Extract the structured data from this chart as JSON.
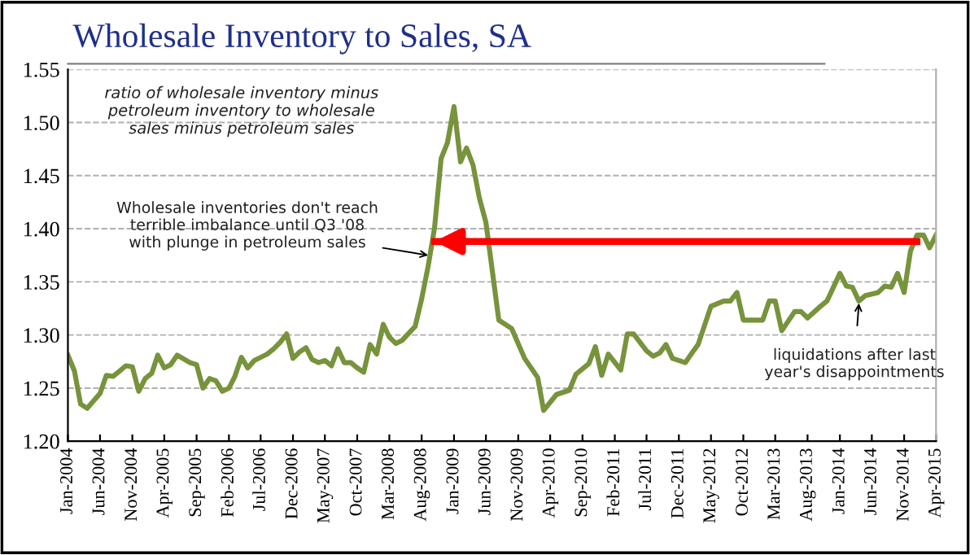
{
  "chart_data": {
    "type": "line",
    "title": "Wholesale Inventory to Sales, SA",
    "series": [
      {
        "color": "#77933c",
        "x": [
          "2004-01",
          "2004-02",
          "2004-03",
          "2004-04",
          "2004-06",
          "2004-07",
          "2004-08",
          "2004-09",
          "2004-10",
          "2004-11",
          "2004-12",
          "2005-01",
          "2005-02",
          "2005-03",
          "2005-04",
          "2005-05",
          "2005-06",
          "2005-08",
          "2005-09",
          "2005-10",
          "2005-11",
          "2005-12",
          "2006-01",
          "2006-02",
          "2006-03",
          "2006-04",
          "2006-05",
          "2006-06",
          "2006-08",
          "2006-09",
          "2006-10",
          "2006-11",
          "2006-12",
          "2007-01",
          "2007-02",
          "2007-03",
          "2007-04",
          "2007-05",
          "2007-06",
          "2007-07",
          "2007-08",
          "2007-09",
          "2007-10",
          "2007-11",
          "2007-12",
          "2008-01",
          "2008-02",
          "2008-03",
          "2008-04",
          "2008-05",
          "2008-07",
          "2008-08",
          "2008-09",
          "2008-10",
          "2008-11",
          "2008-12",
          "2009-01",
          "2009-02",
          "2009-03",
          "2009-04",
          "2009-05",
          "2009-06",
          "2009-08",
          "2009-10",
          "2009-12",
          "2010-02",
          "2010-03",
          "2010-05",
          "2010-07",
          "2010-08",
          "2010-10",
          "2010-11",
          "2010-12",
          "2011-01",
          "2011-03",
          "2011-04",
          "2011-05",
          "2011-07",
          "2011-08",
          "2011-09",
          "2011-10",
          "2011-11",
          "2012-01",
          "2012-02",
          "2012-03",
          "2012-05",
          "2012-07",
          "2012-08",
          "2012-09",
          "2012-10",
          "2013-01",
          "2013-02",
          "2013-03",
          "2013-04",
          "2013-06",
          "2013-07",
          "2013-08",
          "2013-10",
          "2013-11",
          "2014-01",
          "2014-02",
          "2014-03",
          "2014-04",
          "2014-05",
          "2014-07",
          "2014-08",
          "2014-09",
          "2014-10",
          "2014-11",
          "2014-12",
          "2015-01",
          "2015-02",
          "2015-03",
          "2015-04"
        ],
        "values": [
          1.281,
          1.266,
          1.235,
          1.231,
          1.245,
          1.262,
          1.261,
          1.266,
          1.271,
          1.27,
          1.247,
          1.259,
          1.264,
          1.281,
          1.269,
          1.272,
          1.281,
          1.274,
          1.272,
          1.25,
          1.259,
          1.257,
          1.247,
          1.25,
          1.261,
          1.279,
          1.269,
          1.276,
          1.282,
          1.287,
          1.293,
          1.301,
          1.278,
          1.284,
          1.288,
          1.277,
          1.274,
          1.276,
          1.271,
          1.287,
          1.274,
          1.274,
          1.269,
          1.265,
          1.291,
          1.282,
          1.31,
          1.298,
          1.292,
          1.295,
          1.308,
          1.334,
          1.365,
          1.401,
          1.466,
          1.481,
          1.515,
          1.463,
          1.476,
          1.46,
          1.429,
          1.406,
          1.314,
          1.306,
          1.278,
          1.26,
          1.229,
          1.244,
          1.248,
          1.263,
          1.273,
          1.289,
          1.262,
          1.282,
          1.267,
          1.301,
          1.301,
          1.285,
          1.28,
          1.283,
          1.291,
          1.278,
          1.274,
          1.283,
          1.291,
          1.327,
          1.332,
          1.332,
          1.34,
          1.314,
          1.314,
          1.332,
          1.332,
          1.304,
          1.322,
          1.322,
          1.316,
          1.327,
          1.332,
          1.358,
          1.346,
          1.345,
          1.332,
          1.337,
          1.34,
          1.346,
          1.345,
          1.358,
          1.34,
          1.379,
          1.394,
          1.394,
          1.382,
          1.394
        ]
      },
      {
        "color": "#ff0000",
        "x": [
          "2008-10",
          "2015-01"
        ],
        "values": [
          1.388,
          1.388
        ]
      }
    ],
    "xlim": [
      "2004-01",
      "2015-04"
    ],
    "xticks": [
      {
        "value": "2004-01",
        "label": "Jan-2004"
      },
      {
        "value": "2004-06",
        "label": "Jun-2004"
      },
      {
        "value": "2004-11",
        "label": "Nov-2004"
      },
      {
        "value": "2005-04",
        "label": "Apr-2005"
      },
      {
        "value": "2005-09",
        "label": "Sep-2005"
      },
      {
        "value": "2006-02",
        "label": "Feb-2006"
      },
      {
        "value": "2006-07",
        "label": "Jul-2006"
      },
      {
        "value": "2006-12",
        "label": "Dec-2006"
      },
      {
        "value": "2007-05",
        "label": "May-2007"
      },
      {
        "value": "2007-10",
        "label": "Oct-2007"
      },
      {
        "value": "2008-03",
        "label": "Mar-2008"
      },
      {
        "value": "2008-08",
        "label": "Aug-2008"
      },
      {
        "value": "2009-01",
        "label": "Jan-2009"
      },
      {
        "value": "2009-06",
        "label": "Jun-2009"
      },
      {
        "value": "2009-11",
        "label": "Nov-2009"
      },
      {
        "value": "2010-04",
        "label": "Apr-2010"
      },
      {
        "value": "2010-09",
        "label": "Sep-2010"
      },
      {
        "value": "2011-02",
        "label": "Feb-2011"
      },
      {
        "value": "2011-07",
        "label": "Jul-2011"
      },
      {
        "value": "2011-12",
        "label": "Dec-2011"
      },
      {
        "value": "2012-05",
        "label": "May-2012"
      },
      {
        "value": "2012-10",
        "label": "Oct-2012"
      },
      {
        "value": "2013-03",
        "label": "Mar-2013"
      },
      {
        "value": "2013-08",
        "label": "Aug-2013"
      },
      {
        "value": "2014-01",
        "label": "Jan-2014"
      },
      {
        "value": "2014-06",
        "label": "Jun-2014"
      },
      {
        "value": "2014-11",
        "label": "Nov-2014"
      },
      {
        "value": "2015-04",
        "label": "Apr-2015"
      }
    ],
    "ylim": [
      1.2,
      1.55
    ],
    "yticks": [
      {
        "value": 1.2,
        "label": "1.20"
      },
      {
        "value": 1.25,
        "label": "1.25"
      },
      {
        "value": 1.3,
        "label": "1.30"
      },
      {
        "value": 1.35,
        "label": "1.35"
      },
      {
        "value": 1.4,
        "label": "1.40"
      },
      {
        "value": 1.45,
        "label": "1.45"
      },
      {
        "value": 1.5,
        "label": "1.50"
      },
      {
        "value": 1.55,
        "label": "1.55"
      }
    ],
    "grid": "y",
    "line_style": "solid",
    "marker": "none",
    "legend": false,
    "annotations": [
      "ratio of wholesale inventory minus\npetroleum inventory to wholesale\nsales minus petroleum sales",
      {
        "text": "Wholesale inventories don't reach\nterrible imbalance until Q3 '08\nwith plunge in petroleum sales",
        "x": "2008-09",
        "y": 1.375
      },
      {
        "text": "liquidations after last\nyear's disappointments",
        "x": "2014-04",
        "y": 1.33
      }
    ]
  }
}
